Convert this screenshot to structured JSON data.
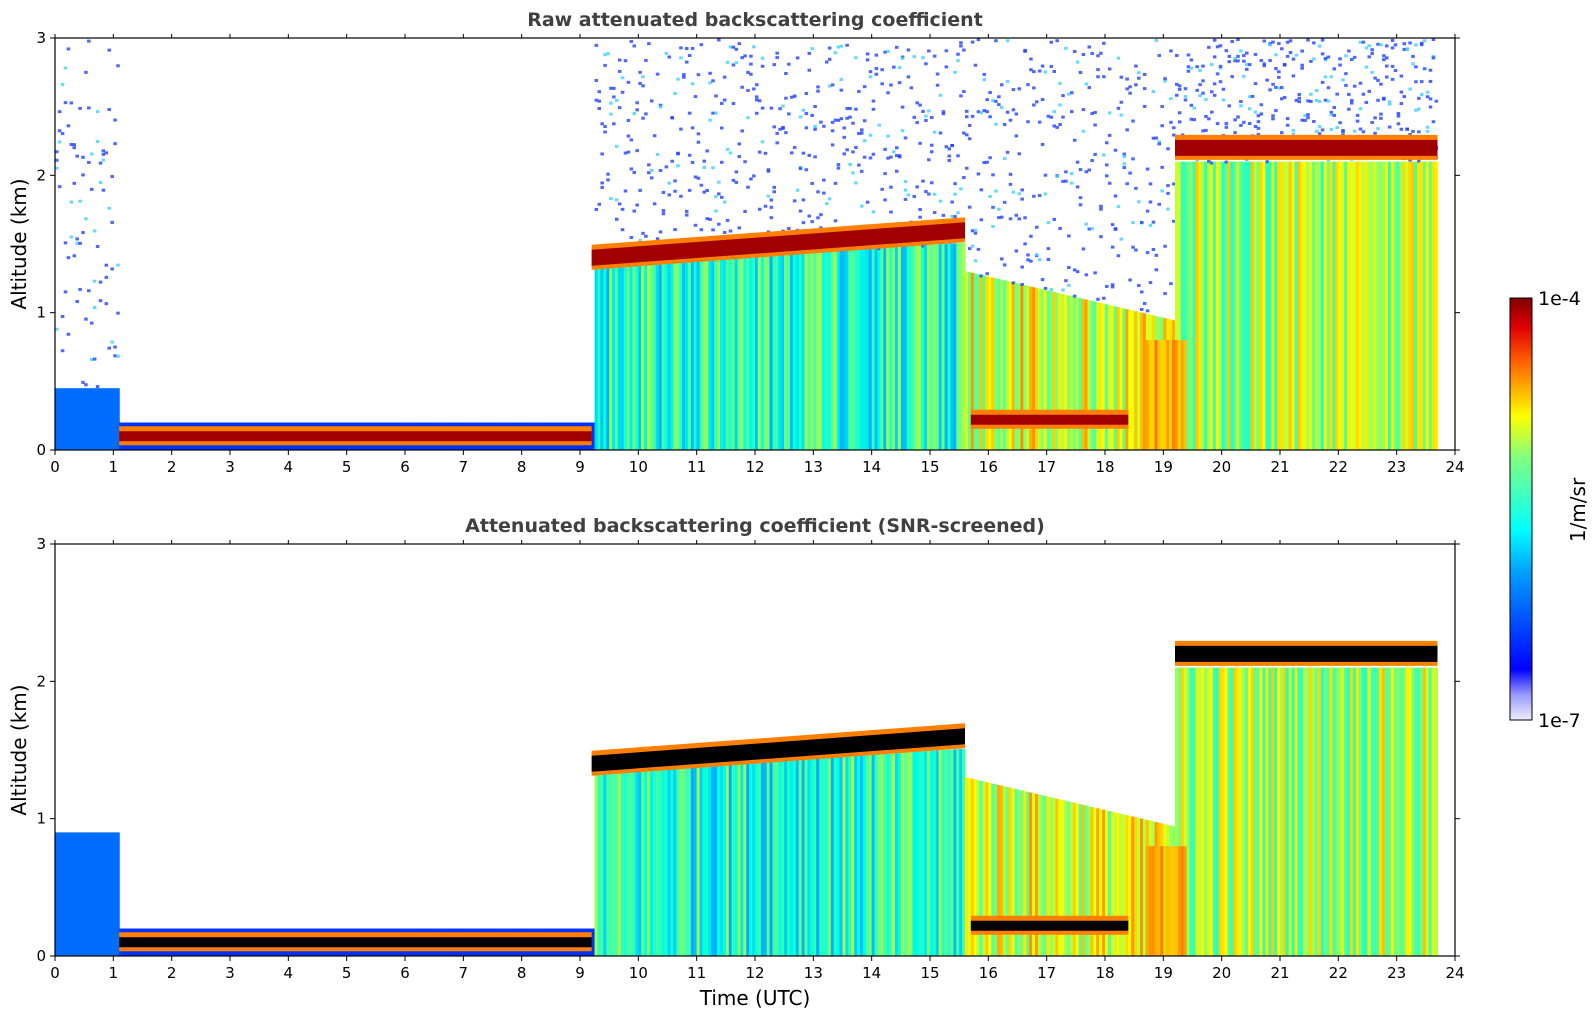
{
  "chart_data": [
    {
      "type": "heatmap",
      "title": "Raw attenuated backscattering coefficient",
      "xlabel": "",
      "ylabel": "Altitude (km)",
      "xlim": [
        0,
        24
      ],
      "ylim": [
        0,
        3
      ],
      "xticks": [
        "0",
        "1",
        "2",
        "3",
        "4",
        "5",
        "6",
        "7",
        "8",
        "9",
        "10",
        "11",
        "12",
        "13",
        "14",
        "15",
        "16",
        "17",
        "18",
        "19",
        "20",
        "21",
        "22",
        "23",
        "24"
      ],
      "yticks": [
        "0",
        "1",
        "2",
        "3"
      ],
      "features": [
        {
          "label": "surface layer",
          "t_start": 1.1,
          "t_end": 9.2,
          "alt_km": 0.1
        },
        {
          "label": "cloud layer",
          "t_start": 9.2,
          "t_end": 15.6,
          "alt_km_start": 1.4,
          "alt_km_end": 1.6
        },
        {
          "label": "cloud layer",
          "t_start": 19.2,
          "t_end": 23.7,
          "alt_km": 2.2
        },
        {
          "label": "low cloud",
          "t_start": 15.7,
          "t_end": 18.4,
          "alt_km": 0.22
        }
      ]
    },
    {
      "type": "heatmap",
      "title": "Attenuated backscattering coefficient (SNR-screened)",
      "xlabel": "Time (UTC)",
      "ylabel": "Altitude (km)",
      "xlim": [
        0,
        24
      ],
      "ylim": [
        0,
        3
      ],
      "xticks": [
        "0",
        "1",
        "2",
        "3",
        "4",
        "5",
        "6",
        "7",
        "8",
        "9",
        "10",
        "11",
        "12",
        "13",
        "14",
        "15",
        "16",
        "17",
        "18",
        "19",
        "20",
        "21",
        "22",
        "23",
        "24"
      ],
      "yticks": [
        "0",
        "1",
        "2",
        "3"
      ],
      "features": [
        {
          "label": "surface layer",
          "t_start": 1.1,
          "t_end": 9.2,
          "alt_km": 0.1
        },
        {
          "label": "cloud layer",
          "t_start": 9.2,
          "t_end": 15.6,
          "alt_km_start": 1.4,
          "alt_km_end": 1.6
        },
        {
          "label": "cloud layer",
          "t_start": 19.2,
          "t_end": 23.7,
          "alt_km": 2.2
        },
        {
          "label": "low cloud",
          "t_start": 15.7,
          "t_end": 18.4,
          "alt_km": 0.22
        }
      ]
    }
  ],
  "colorbar": {
    "label": "1/m/sr",
    "max_label": "1e-4",
    "min_label": "1e-7",
    "scale": "log",
    "colormap": "jet",
    "colors": [
      "#eeeeff",
      "#0000ff",
      "#00ffff",
      "#ffff00",
      "#ff0000",
      "#800000"
    ]
  }
}
